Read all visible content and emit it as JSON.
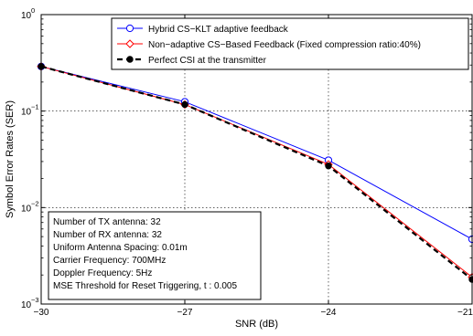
{
  "chart_data": {
    "type": "line",
    "xlabel": "SNR (dB)",
    "ylabel": "Symbol Error Rates (SER)",
    "xlim": [
      -30,
      -21
    ],
    "ylim": [
      0.001,
      1
    ],
    "yscale": "log",
    "grid": true,
    "x_ticks": [
      -30,
      -27,
      -24,
      -21
    ],
    "x_tick_labels": [
      "−30",
      "−27",
      "−24",
      "−21"
    ],
    "y_ticks": [
      0.001,
      0.01,
      0.1,
      1
    ],
    "y_tick_labels": [
      {
        "base": "10",
        "exp": "−3"
      },
      {
        "base": "10",
        "exp": "−2"
      },
      {
        "base": "10",
        "exp": "−1"
      },
      {
        "base": "10",
        "exp": "0"
      }
    ],
    "x": [
      -30,
      -27,
      -24,
      -21
    ],
    "series": [
      {
        "name": "Hybrid CS−KLT adaptive feedback",
        "values": [
          0.29,
          0.125,
          0.031,
          0.0047
        ],
        "color": "#0000ff",
        "marker": "circle-open",
        "line": "solid"
      },
      {
        "name": "Non−adaptive CS−Based Feedback (Fixed compression ratio:40%)",
        "values": [
          0.29,
          0.117,
          0.028,
          0.0019
        ],
        "color": "#ff0000",
        "marker": "diamond-open",
        "line": "solid"
      },
      {
        "name": "Perfect CSI at the transmitter",
        "values": [
          0.29,
          0.117,
          0.027,
          0.0018
        ],
        "color": "#000000",
        "marker": "circle-filled",
        "line": "dashed"
      }
    ],
    "legend_position": "top-right",
    "annotation_lines": [
      "Number of TX antenna: 32",
      "Number of RX antenna: 32",
      "Uniform Antenna Spacing: 0.01m",
      "Carrier Frequency: 700MHz",
      "Doppler Frequency: 5Hz",
      "MSE Threshold for Reset Triggering, t : 0.005"
    ]
  }
}
